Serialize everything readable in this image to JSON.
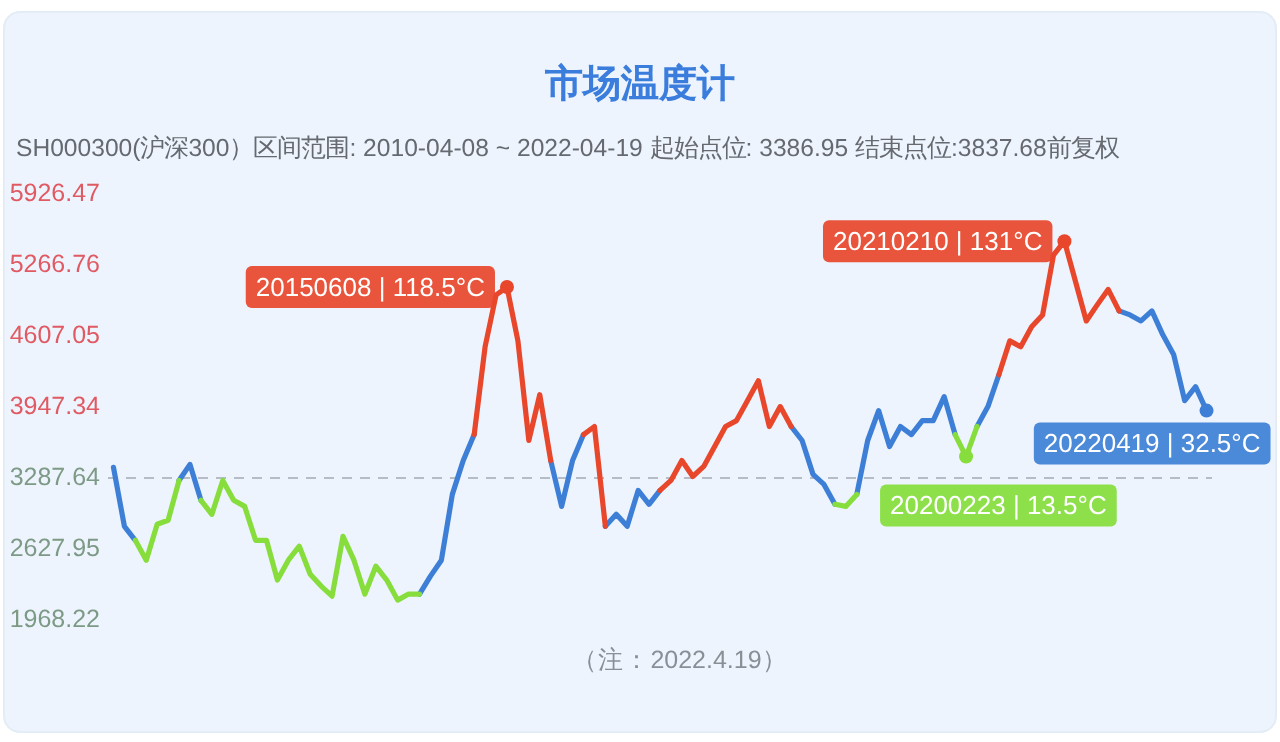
{
  "chart_data": {
    "type": "line",
    "title": "市场温度计",
    "subtitle": "SH000300(沪深300）区间范围: 2010-04-08 ~ 2022-04-19  起始点位: 3386.95  结束点位:3837.68前复权",
    "categories": [
      null,
      null,
      null,
      null,
      null,
      null,
      null,
      null,
      null,
      null,
      null,
      null,
      null,
      null,
      null,
      null,
      null,
      null,
      null,
      null,
      null,
      null,
      null,
      null,
      null,
      null,
      null,
      null,
      null,
      null,
      null,
      null,
      null,
      null,
      null,
      null,
      null,
      null,
      null,
      null,
      null,
      null,
      null,
      null,
      null,
      null,
      null,
      null,
      null,
      null,
      null,
      null,
      null,
      null,
      null,
      null,
      null,
      null,
      null,
      null,
      null,
      null,
      null,
      null,
      null,
      null,
      null,
      null,
      null,
      null,
      null,
      null,
      null,
      null,
      null,
      null,
      null,
      null,
      null,
      null,
      null,
      null,
      null,
      null,
      null,
      null,
      null,
      null,
      null,
      null,
      null,
      null,
      null,
      null,
      null,
      null,
      null,
      null,
      null,
      null,
      null
    ],
    "series": [
      {
        "color": "#3d7fd6",
        "values": [
          3387,
          2839,
          2709,
          null,
          null,
          null,
          3265,
          3414,
          3080,
          null,
          null,
          null,
          null,
          null,
          null,
          null,
          null,
          null,
          null,
          null,
          null,
          null,
          null,
          null,
          null,
          null,
          null,
          null,
          2209,
          2376,
          2524,
          3135,
          3450,
          3691,
          null,
          null,
          null,
          null,
          null,
          null,
          3450,
          3024,
          3450,
          3691,
          null,
          2839,
          2950,
          2839,
          3172,
          3043,
          3172,
          null,
          null,
          null,
          null,
          null,
          null,
          null,
          null,
          null,
          null,
          null,
          3766,
          3636,
          3321,
          3228,
          3043,
          null,
          3135,
          3636,
          3914,
          3580,
          3766,
          3691,
          3821,
          3821,
          4044,
          3691,
          null,
          3766,
          3951,
          4247,
          null,
          null,
          null,
          null,
          null,
          null,
          null,
          null,
          null,
          null,
          4840,
          4803,
          4747,
          4840,
          4618,
          4432,
          4006,
          4136,
          3914
        ]
      },
      {
        "color": "#86dd3c",
        "values": [
          null,
          null,
          2709,
          2524,
          2858,
          2895,
          3265,
          null,
          3080,
          2950,
          3265,
          3080,
          3024,
          2709,
          2709,
          2339,
          2524,
          2654,
          2394,
          2283,
          2190,
          2746,
          2524,
          2209,
          2468,
          2339,
          2153,
          2209,
          2209,
          null,
          null,
          null,
          null,
          null,
          null,
          null,
          null,
          null,
          null,
          null,
          null,
          null,
          null,
          null,
          null,
          null,
          null,
          null,
          null,
          null,
          null,
          null,
          null,
          null,
          null,
          null,
          null,
          null,
          null,
          null,
          null,
          null,
          null,
          null,
          null,
          null,
          3043,
          3024,
          3135,
          null,
          null,
          null,
          null,
          null,
          null,
          null,
          null,
          3691,
          3487,
          3766,
          null,
          null,
          null,
          null,
          null,
          null,
          null,
          null,
          null,
          null,
          null,
          null,
          null,
          null,
          null,
          null,
          null,
          null,
          null,
          null,
          null
        ]
      },
      {
        "color": "#e8472b",
        "values": [
          null,
          null,
          null,
          null,
          null,
          null,
          null,
          null,
          null,
          null,
          null,
          null,
          null,
          null,
          null,
          null,
          null,
          null,
          null,
          null,
          null,
          null,
          null,
          null,
          null,
          null,
          null,
          null,
          null,
          null,
          null,
          null,
          null,
          3691,
          4507,
          4988,
          5062,
          4562,
          3636,
          4062,
          3450,
          null,
          null,
          3691,
          3766,
          2839,
          null,
          null,
          null,
          null,
          3172,
          3265,
          3450,
          3302,
          3395,
          3580,
          3766,
          3821,
          4006,
          4192,
          3766,
          3951,
          3766,
          null,
          null,
          null,
          null,
          null,
          null,
          null,
          null,
          null,
          null,
          null,
          null,
          null,
          null,
          null,
          null,
          null,
          null,
          4247,
          4562,
          4507,
          4692,
          4803,
          5359,
          5488,
          5118,
          4747,
          4896,
          5040,
          4840,
          null,
          null,
          null,
          null,
          null,
          null,
          null,
          null
        ]
      },
      {
        "type": "scatter",
        "colors": [
          null,
          null,
          null,
          null,
          null,
          null,
          null,
          null,
          null,
          null,
          null,
          null,
          null,
          null,
          null,
          null,
          null,
          null,
          null,
          null,
          null,
          null,
          null,
          null,
          null,
          null,
          null,
          null,
          null,
          null,
          null,
          null,
          null,
          null,
          null,
          null,
          "#e8472b",
          null,
          null,
          null,
          null,
          null,
          null,
          null,
          null,
          null,
          null,
          null,
          null,
          null,
          null,
          null,
          null,
          null,
          null,
          null,
          null,
          null,
          null,
          null,
          null,
          null,
          null,
          null,
          null,
          null,
          null,
          null,
          null,
          null,
          null,
          null,
          null,
          null,
          null,
          null,
          null,
          null,
          "#86dd3c",
          null,
          null,
          null,
          null,
          null,
          null,
          null,
          null,
          "#e8472b",
          null,
          null,
          null,
          null,
          null,
          null,
          null,
          null,
          null,
          null,
          null,
          null,
          "#3d7fd6"
        ],
        "values": [
          null,
          null,
          null,
          null,
          null,
          null,
          null,
          null,
          null,
          null,
          null,
          null,
          null,
          null,
          null,
          null,
          null,
          null,
          null,
          null,
          null,
          null,
          null,
          null,
          null,
          null,
          null,
          null,
          null,
          null,
          null,
          null,
          null,
          null,
          null,
          null,
          5062,
          null,
          null,
          null,
          null,
          null,
          null,
          null,
          null,
          null,
          null,
          null,
          null,
          null,
          null,
          null,
          null,
          null,
          null,
          null,
          null,
          null,
          null,
          null,
          null,
          null,
          null,
          null,
          null,
          null,
          null,
          null,
          null,
          null,
          null,
          null,
          null,
          null,
          null,
          null,
          null,
          null,
          3487,
          null,
          null,
          null,
          null,
          null,
          null,
          null,
          null,
          5488,
          null,
          null,
          null,
          null,
          null,
          null,
          null,
          null,
          null,
          null,
          null,
          null,
          3914
        ]
      }
    ],
    "ylim": [
      1968.22,
      5926.47
    ],
    "yticks": [
      1968.22,
      2627.95,
      3287.64,
      3947.34,
      4607.05,
      5266.76,
      5926.47
    ],
    "tick_labels": "y",
    "line_style": "solid",
    "ref_lines": [
      {
        "axis": "y",
        "value": 3287.64,
        "color": "#b5bcc6",
        "line_style": "dashed"
      }
    ],
    "annotations": [
      "20150608 | 118.5°C",
      "20200223 | 13.5°C",
      "20210210 | 131°C",
      "20220419 | 32.5°C",
      "（注：2022.4.19）"
    ]
  }
}
